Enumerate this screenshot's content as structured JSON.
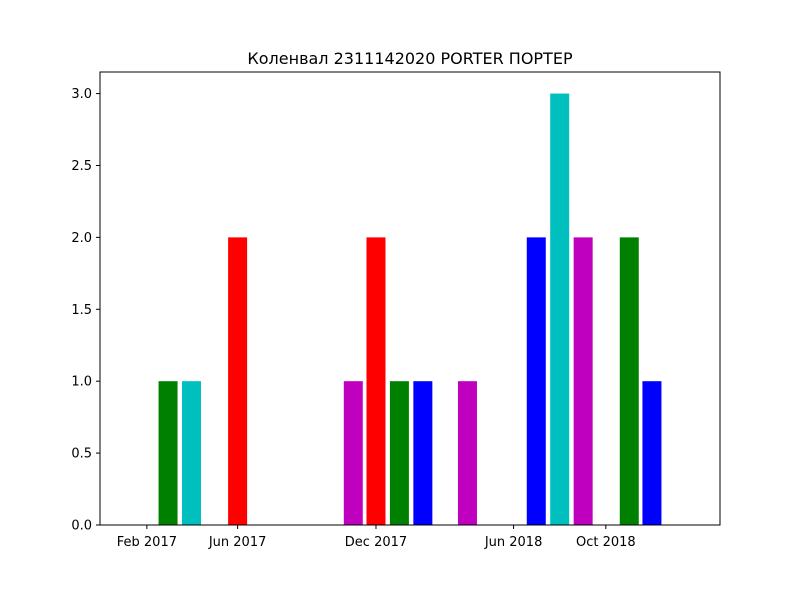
{
  "chart_data": {
    "type": "bar",
    "title": "Коленвал 2311142020 PORTER ПОРТЕР",
    "xlabel": "",
    "ylabel": "",
    "x_ticks": [
      "Feb 2017",
      "Jun 2017",
      "Dec 2017",
      "Jun 2018",
      "Oct 2018"
    ],
    "x_tick_dates": [
      "2017-02-01",
      "2017-06-01",
      "2017-12-01",
      "2018-06-01",
      "2018-10-01"
    ],
    "xlim": [
      "2016-12-01",
      "2019-03-01"
    ],
    "y_ticks": [
      "0.0",
      "0.5",
      "1.0",
      "1.5",
      "2.0",
      "2.5",
      "3.0"
    ],
    "ylim": [
      0,
      3.15
    ],
    "grid": false,
    "bars": [
      {
        "date": "2017-03-01",
        "value": 1,
        "color": "#008000"
      },
      {
        "date": "2017-04-01",
        "value": 1,
        "color": "#00bfbf"
      },
      {
        "date": "2017-06-01",
        "value": 2,
        "color": "#ff0000"
      },
      {
        "date": "2017-11-01",
        "value": 1,
        "color": "#bf00bf"
      },
      {
        "date": "2017-12-01",
        "value": 2,
        "color": "#ff0000"
      },
      {
        "date": "2018-01-01",
        "value": 1,
        "color": "#008000"
      },
      {
        "date": "2018-02-01",
        "value": 1,
        "color": "#0000ff"
      },
      {
        "date": "2018-04-01",
        "value": 1,
        "color": "#bf00bf"
      },
      {
        "date": "2018-07-01",
        "value": 2,
        "color": "#0000ff"
      },
      {
        "date": "2018-08-01",
        "value": 3,
        "color": "#00bfbf"
      },
      {
        "date": "2018-09-01",
        "value": 2,
        "color": "#bf00bf"
      },
      {
        "date": "2018-11-01",
        "value": 2,
        "color": "#008000"
      },
      {
        "date": "2018-12-01",
        "value": 1,
        "color": "#0000ff"
      }
    ]
  }
}
